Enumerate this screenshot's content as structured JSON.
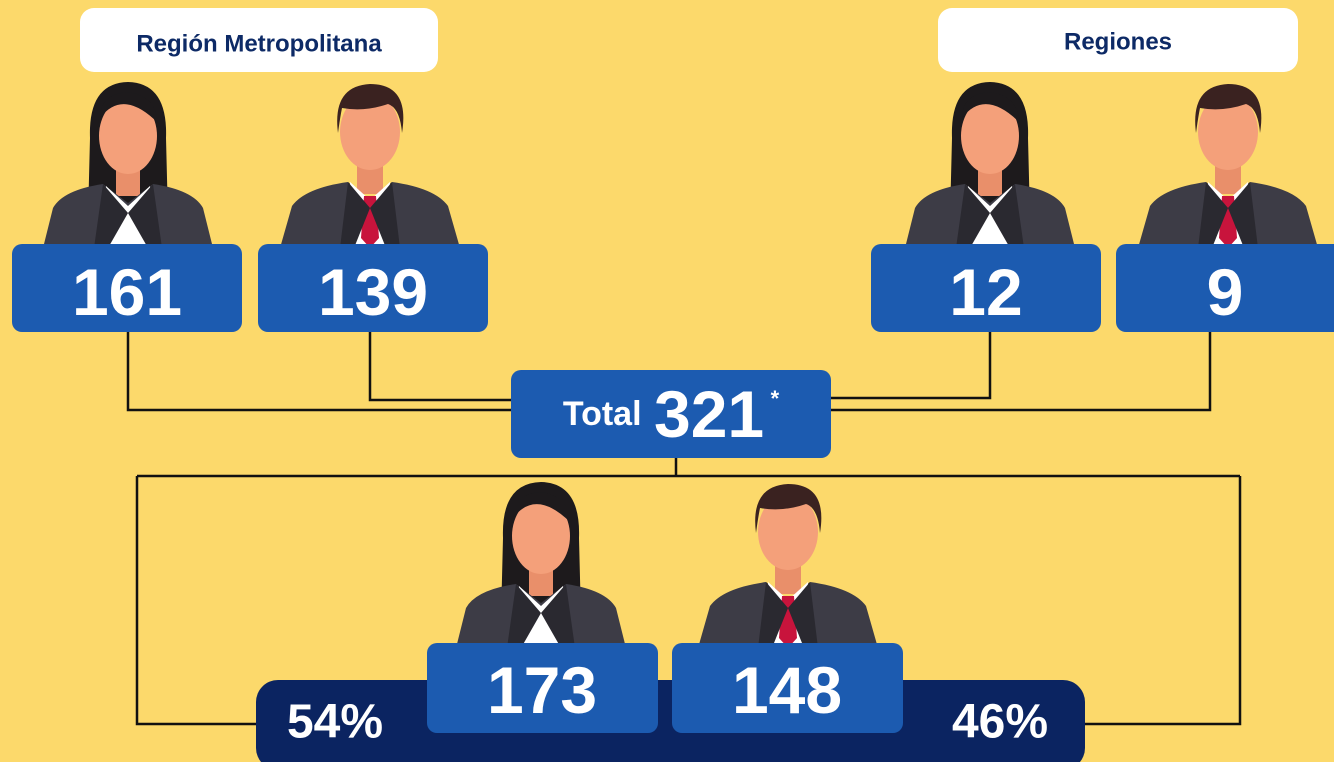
{
  "groups": [
    {
      "label": "Región Metropolitana",
      "women": 161,
      "men": 139
    },
    {
      "label": "Regiones",
      "women": 12,
      "men": 9
    }
  ],
  "total": {
    "label": "Total",
    "value": 321,
    "note": "*"
  },
  "summary": {
    "women": 173,
    "men": 148,
    "women_share": "54%",
    "men_share": "46%"
  }
}
